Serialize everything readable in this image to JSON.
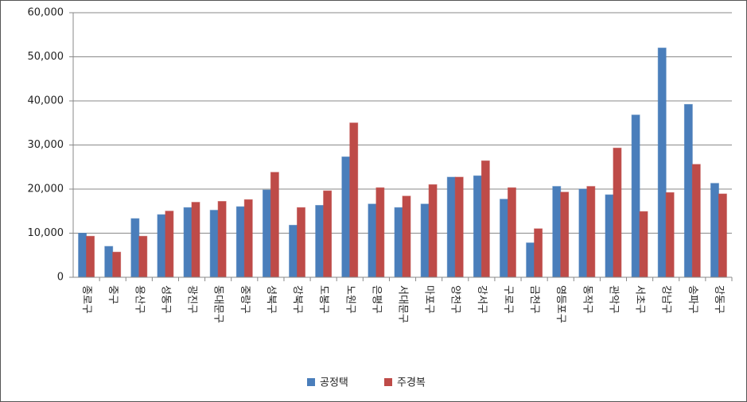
{
  "chart_data": {
    "type": "bar",
    "categories": [
      "종로구",
      "중구",
      "용산구",
      "성동구",
      "광진구",
      "동대문구",
      "중랑구",
      "성북구",
      "강북구",
      "도봉구",
      "노원구",
      "은평구",
      "서대문구",
      "마포구",
      "양천구",
      "강서구",
      "구로구",
      "금천구",
      "영등포구",
      "동작구",
      "관악구",
      "서초구",
      "강남구",
      "송파구",
      "강동구"
    ],
    "series": [
      {
        "name": "공정택",
        "color": "#4a7ebb",
        "values": [
          10000,
          7000,
          13300,
          14200,
          15800,
          15200,
          16000,
          19800,
          11800,
          16300,
          27300,
          16600,
          15800,
          16600,
          22700,
          23000,
          17700,
          7800,
          20600,
          20000,
          18700,
          36800,
          52000,
          39200,
          21300
        ]
      },
      {
        "name": "주경복",
        "color": "#be4b48",
        "values": [
          9300,
          5700,
          9300,
          15000,
          17000,
          17200,
          17600,
          23800,
          15800,
          19600,
          35000,
          20300,
          18400,
          21000,
          22700,
          26400,
          20300,
          11000,
          19300,
          20600,
          29300,
          14900,
          19200,
          25600,
          18900
        ]
      }
    ],
    "ylim": [
      0,
      60000
    ],
    "yticks": [
      0,
      {
        "value": 10000,
        "label": "10,000"
      },
      {
        "value": 20000,
        "label": "20,000"
      },
      {
        "value": 30000,
        "label": "30,000"
      },
      {
        "value": 40000,
        "label": "40,000"
      },
      {
        "value": 50000,
        "label": "50,000"
      },
      {
        "value": 60000,
        "label": "60,000"
      }
    ],
    "grid": true,
    "legend": "bottom"
  }
}
